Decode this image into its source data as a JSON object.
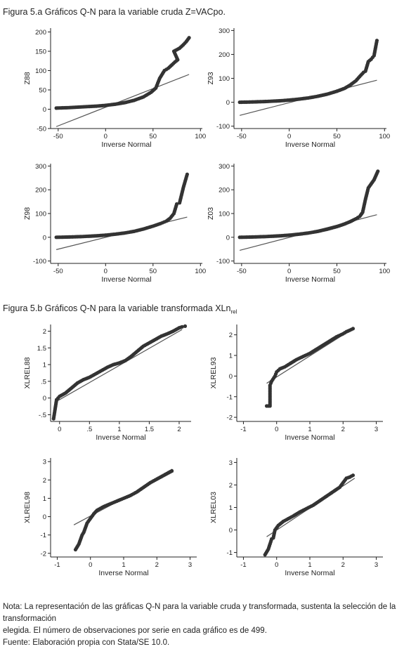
{
  "figure_a": {
    "title": "Figura 5.a Gráficos Q-N para la variable cruda Z=VACpo."
  },
  "figure_b": {
    "title_main": "Figura 5.b Gráficos Q-N para la variable transformada XLn",
    "title_sub": "rel"
  },
  "note": {
    "line1": "Nota: La representación de las gráficas Q-N para la variable cruda y transformada, sustenta la selección de la transformación",
    "line2": "elegida.  El número de observaciones por serie en cada gráfico es de 499.",
    "source": "Fuente: Elaboración propia con Stata/SE 10.0."
  },
  "colors": {
    "points": "#333333",
    "line": "#555555",
    "axis": "#222222"
  },
  "chart_data": [
    {
      "id": "z88",
      "type": "scatter",
      "ylabel": "Z88",
      "xlabel": "Inverse Normal",
      "xlim": [
        -58,
        102
      ],
      "ylim": [
        -50,
        210
      ],
      "xticks": [
        -50,
        0,
        50,
        100
      ],
      "yticks": [
        -50,
        0,
        50,
        100,
        150,
        200
      ],
      "line": {
        "x": [
          -52,
          88
        ],
        "y": [
          -45,
          90
        ]
      },
      "points": [
        [
          -52,
          3
        ],
        [
          -40,
          4
        ],
        [
          -25,
          6
        ],
        [
          -10,
          8
        ],
        [
          0,
          10
        ],
        [
          10,
          13
        ],
        [
          20,
          17
        ],
        [
          30,
          23
        ],
        [
          40,
          32
        ],
        [
          48,
          44
        ],
        [
          53,
          55
        ],
        [
          57,
          80
        ],
        [
          62,
          100
        ],
        [
          66,
          106
        ],
        [
          70,
          115
        ],
        [
          73,
          122
        ],
        [
          76,
          128
        ],
        [
          72,
          150
        ],
        [
          78,
          158
        ],
        [
          82,
          167
        ],
        [
          85,
          175
        ],
        [
          88,
          185
        ]
      ]
    },
    {
      "id": "z93",
      "type": "scatter",
      "ylabel": "Z93",
      "xlabel": "Inverse Normal",
      "xlim": [
        -58,
        102
      ],
      "ylim": [
        -110,
        310
      ],
      "xticks": [
        -50,
        0,
        50,
        100
      ],
      "yticks": [
        -100,
        0,
        100,
        200,
        300
      ],
      "line": {
        "x": [
          -52,
          92
        ],
        "y": [
          -55,
          92
        ]
      },
      "points": [
        [
          -52,
          0
        ],
        [
          -40,
          1
        ],
        [
          -25,
          3
        ],
        [
          -10,
          6
        ],
        [
          0,
          9
        ],
        [
          10,
          13
        ],
        [
          20,
          18
        ],
        [
          30,
          25
        ],
        [
          40,
          34
        ],
        [
          50,
          46
        ],
        [
          58,
          58
        ],
        [
          64,
          72
        ],
        [
          70,
          90
        ],
        [
          74,
          108
        ],
        [
          78,
          125
        ],
        [
          80,
          130
        ],
        [
          83,
          170
        ],
        [
          86,
          180
        ],
        [
          89,
          195
        ],
        [
          92,
          258
        ]
      ]
    },
    {
      "id": "z98",
      "type": "scatter",
      "ylabel": "Z98",
      "xlabel": "Inverse Normal",
      "xlim": [
        -58,
        102
      ],
      "ylim": [
        -110,
        310
      ],
      "xticks": [
        -50,
        0,
        50,
        100
      ],
      "yticks": [
        -100,
        0,
        100,
        200,
        300
      ],
      "line": {
        "x": [
          -52,
          86
        ],
        "y": [
          -52,
          85
        ]
      },
      "points": [
        [
          -52,
          0
        ],
        [
          -40,
          1
        ],
        [
          -25,
          3
        ],
        [
          -10,
          6
        ],
        [
          0,
          9
        ],
        [
          10,
          13
        ],
        [
          20,
          18
        ],
        [
          30,
          25
        ],
        [
          40,
          35
        ],
        [
          50,
          47
        ],
        [
          58,
          58
        ],
        [
          64,
          68
        ],
        [
          68,
          80
        ],
        [
          72,
          100
        ],
        [
          75,
          140
        ],
        [
          78,
          145
        ],
        [
          82,
          210
        ],
        [
          86,
          265
        ]
      ]
    },
    {
      "id": "z03",
      "type": "scatter",
      "ylabel": "Z03",
      "xlabel": "Inverse Normal",
      "xlim": [
        -58,
        102
      ],
      "ylim": [
        -110,
        310
      ],
      "xticks": [
        -50,
        0,
        50,
        100
      ],
      "yticks": [
        -100,
        0,
        100,
        200,
        300
      ],
      "line": {
        "x": [
          -52,
          92
        ],
        "y": [
          -55,
          95
        ]
      },
      "points": [
        [
          -52,
          0
        ],
        [
          -40,
          1
        ],
        [
          -25,
          3
        ],
        [
          -10,
          6
        ],
        [
          0,
          9
        ],
        [
          10,
          13
        ],
        [
          20,
          18
        ],
        [
          30,
          25
        ],
        [
          40,
          34
        ],
        [
          50,
          45
        ],
        [
          58,
          56
        ],
        [
          64,
          66
        ],
        [
          70,
          78
        ],
        [
          74,
          88
        ],
        [
          77,
          105
        ],
        [
          80,
          160
        ],
        [
          83,
          208
        ],
        [
          86,
          225
        ],
        [
          89,
          242
        ],
        [
          93,
          278
        ]
      ]
    },
    {
      "id": "xlrel88",
      "type": "scatter",
      "ylabel": "XLREL88",
      "xlabel": "Inverse Normal",
      "xlim": [
        -0.15,
        2.2
      ],
      "ylim": [
        -0.7,
        2.2
      ],
      "xticks": [
        0,
        0.5,
        1,
        1.5,
        2
      ],
      "xticklabels": [
        "0",
        ".5",
        "1",
        "1.5",
        "2"
      ],
      "yticks": [
        -0.5,
        0,
        0.5,
        1,
        1.5,
        2
      ],
      "yticklabels": [
        "-.5",
        "0",
        ".5",
        "1",
        "1.5",
        "2"
      ],
      "line": {
        "x": [
          -0.05,
          2.05
        ],
        "y": [
          -0.1,
          2.05
        ]
      },
      "points": [
        [
          -0.1,
          -0.62
        ],
        [
          -0.05,
          -0.05
        ],
        [
          0,
          0.05
        ],
        [
          0.1,
          0.15
        ],
        [
          0.2,
          0.3
        ],
        [
          0.3,
          0.45
        ],
        [
          0.4,
          0.55
        ],
        [
          0.5,
          0.62
        ],
        [
          0.6,
          0.72
        ],
        [
          0.7,
          0.82
        ],
        [
          0.8,
          0.92
        ],
        [
          0.9,
          1.0
        ],
        [
          1.0,
          1.05
        ],
        [
          1.1,
          1.12
        ],
        [
          1.2,
          1.25
        ],
        [
          1.3,
          1.4
        ],
        [
          1.4,
          1.55
        ],
        [
          1.5,
          1.65
        ],
        [
          1.6,
          1.75
        ],
        [
          1.7,
          1.85
        ],
        [
          1.8,
          1.92
        ],
        [
          1.9,
          2.0
        ],
        [
          2.0,
          2.1
        ],
        [
          2.05,
          2.13
        ],
        [
          2.1,
          2.15
        ]
      ]
    },
    {
      "id": "xlrel93",
      "type": "scatter",
      "ylabel": "XLREL93",
      "xlabel": "Inverse Normal",
      "xlim": [
        -1.2,
        3.2
      ],
      "ylim": [
        -2.2,
        2.5
      ],
      "xticks": [
        -1,
        0,
        1,
        2,
        3
      ],
      "yticks": [
        -2,
        -1,
        0,
        1,
        2
      ],
      "line": {
        "x": [
          -0.3,
          2.2
        ],
        "y": [
          -0.35,
          2.2
        ]
      },
      "points": [
        [
          -0.3,
          -1.45
        ],
        [
          -0.2,
          -1.45
        ],
        [
          -0.2,
          -0.45
        ],
        [
          -0.15,
          -0.25
        ],
        [
          -0.05,
          0
        ],
        [
          0,
          0.2
        ],
        [
          0.1,
          0.35
        ],
        [
          0.25,
          0.45
        ],
        [
          0.4,
          0.6
        ],
        [
          0.6,
          0.8
        ],
        [
          0.8,
          0.95
        ],
        [
          1.0,
          1.1
        ],
        [
          1.2,
          1.3
        ],
        [
          1.4,
          1.5
        ],
        [
          1.6,
          1.7
        ],
        [
          1.8,
          1.9
        ],
        [
          2.0,
          2.05
        ],
        [
          2.1,
          2.15
        ],
        [
          2.2,
          2.22
        ],
        [
          2.3,
          2.3
        ]
      ]
    },
    {
      "id": "xlrel98",
      "type": "scatter",
      "ylabel": "XLREL98",
      "xlabel": "Inverse Normal",
      "xlim": [
        -1.2,
        3.2
      ],
      "ylim": [
        -2.2,
        3.2
      ],
      "xticks": [
        -1,
        0,
        1,
        2,
        3
      ],
      "yticks": [
        -2,
        -1,
        0,
        1,
        2,
        3
      ],
      "line": {
        "x": [
          -0.5,
          2.5
        ],
        "y": [
          -0.45,
          2.45
        ]
      },
      "points": [
        [
          -0.45,
          -1.8
        ],
        [
          -0.35,
          -1.5
        ],
        [
          -0.25,
          -1.0
        ],
        [
          -0.2,
          -0.85
        ],
        [
          -0.1,
          -0.35
        ],
        [
          0,
          -0.1
        ],
        [
          0.1,
          0.15
        ],
        [
          0.2,
          0.35
        ],
        [
          0.4,
          0.55
        ],
        [
          0.6,
          0.7
        ],
        [
          0.8,
          0.85
        ],
        [
          1.0,
          1.0
        ],
        [
          1.2,
          1.15
        ],
        [
          1.4,
          1.35
        ],
        [
          1.6,
          1.6
        ],
        [
          1.8,
          1.85
        ],
        [
          2.0,
          2.05
        ],
        [
          2.2,
          2.25
        ],
        [
          2.3,
          2.35
        ],
        [
          2.4,
          2.45
        ],
        [
          2.45,
          2.5
        ]
      ]
    },
    {
      "id": "xlrel03",
      "type": "scatter",
      "ylabel": "XLREL03",
      "xlabel": "Inverse Normal",
      "xlim": [
        -1.2,
        3.2
      ],
      "ylim": [
        -1.2,
        3.2
      ],
      "xticks": [
        -1,
        0,
        1,
        2,
        3
      ],
      "yticks": [
        -1,
        0,
        1,
        2,
        3
      ],
      "line": {
        "x": [
          -0.3,
          2.35
        ],
        "y": [
          -0.3,
          2.3
        ]
      },
      "points": [
        [
          -0.35,
          -1.1
        ],
        [
          -0.25,
          -0.85
        ],
        [
          -0.15,
          -0.4
        ],
        [
          -0.1,
          -0.35
        ],
        [
          -0.05,
          0
        ],
        [
          0.05,
          0.2
        ],
        [
          0.2,
          0.38
        ],
        [
          0.35,
          0.5
        ],
        [
          0.5,
          0.62
        ],
        [
          0.7,
          0.8
        ],
        [
          0.9,
          0.95
        ],
        [
          1.1,
          1.1
        ],
        [
          1.3,
          1.3
        ],
        [
          1.5,
          1.5
        ],
        [
          1.7,
          1.7
        ],
        [
          1.9,
          1.9
        ],
        [
          2.0,
          2.1
        ],
        [
          2.1,
          2.3
        ],
        [
          2.2,
          2.35
        ],
        [
          2.3,
          2.43
        ]
      ]
    }
  ]
}
